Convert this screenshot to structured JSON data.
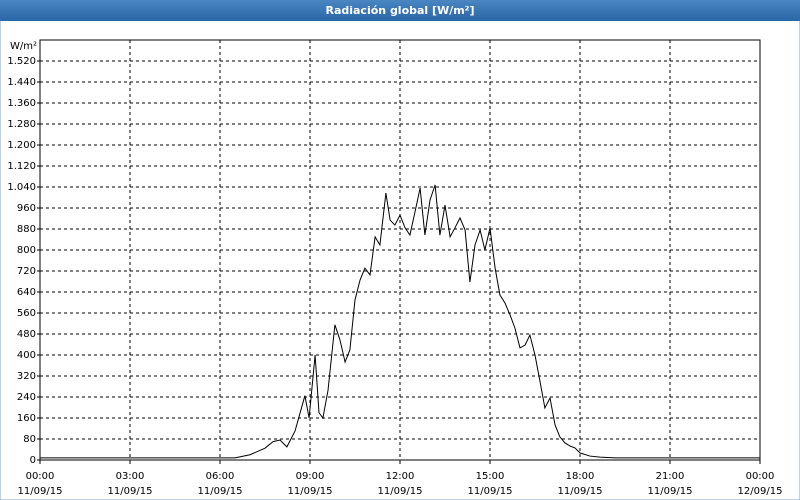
{
  "chart_data": {
    "type": "line",
    "title": "Radiación global [W/m²]",
    "y_unit": "W/m²",
    "x": [
      0,
      6.5,
      7,
      7.5,
      7.77,
      8,
      8.23,
      8.5,
      8.83,
      8.97,
      9.17,
      9.3,
      9.43,
      9.6,
      9.83,
      10,
      10.17,
      10.33,
      10.5,
      10.67,
      10.83,
      11,
      11.17,
      11.33,
      11.53,
      11.67,
      11.83,
      12,
      12.17,
      12.33,
      12.5,
      12.67,
      12.83,
      13,
      13.17,
      13.33,
      13.5,
      13.67,
      13.83,
      14,
      14.17,
      14.33,
      14.5,
      14.67,
      14.83,
      15,
      15.17,
      15.33,
      15.5,
      15.67,
      15.83,
      16,
      16.17,
      16.33,
      16.5,
      16.67,
      16.83,
      17,
      17.17,
      17.33,
      17.5,
      17.67,
      17.83,
      18,
      18.33,
      18.67,
      19.17,
      24
    ],
    "values": [
      8,
      8,
      20,
      45,
      70,
      76,
      50,
      110,
      245,
      160,
      400,
      180,
      160,
      265,
      515,
      457,
      373,
      420,
      610,
      686,
      731,
      705,
      850,
      819,
      1017,
      914,
      895,
      933,
      884,
      857,
      945,
      1036,
      857,
      990,
      1048,
      857,
      971,
      850,
      884,
      922,
      876,
      678,
      819,
      876,
      800,
      884,
      731,
      629,
      598,
      552,
      503,
      427,
      438,
      476,
      400,
      297,
      198,
      236,
      133,
      88,
      65,
      53,
      46,
      27,
      15,
      11,
      8,
      8
    ],
    "color": "#000000",
    "xlim": [
      0,
      24
    ],
    "xticks": [
      {
        "value": 0,
        "label": "00:00"
      },
      {
        "value": 3,
        "label": "03:00"
      },
      {
        "value": 6,
        "label": "06:00"
      },
      {
        "value": 9,
        "label": "09:00"
      },
      {
        "value": 12,
        "label": "12:00"
      },
      {
        "value": 15,
        "label": "15:00"
      },
      {
        "value": 18,
        "label": "18:00"
      },
      {
        "value": 21,
        "label": "21:00"
      },
      {
        "value": 24,
        "label": "00:00"
      }
    ],
    "xtick_dates": [
      "11/09/15",
      "11/09/15",
      "11/09/15",
      "11/09/15",
      "11/09/15",
      "11/09/15",
      "11/09/15",
      "11/09/15",
      "12/09/15"
    ],
    "ylim": [
      0,
      1600
    ],
    "yticks": [
      0,
      80,
      160,
      240,
      320,
      400,
      480,
      560,
      640,
      720,
      800,
      880,
      960,
      {
        "value": 1040,
        "label": "1.040"
      },
      {
        "value": 1120,
        "label": "1.120"
      },
      {
        "value": 1200,
        "label": "1.200"
      },
      {
        "value": 1280,
        "label": "1.280"
      },
      {
        "value": 1360,
        "label": "1.360"
      },
      {
        "value": 1440,
        "label": "1.440"
      },
      {
        "value": 1520,
        "label": "1.520"
      }
    ],
    "grid": true
  }
}
